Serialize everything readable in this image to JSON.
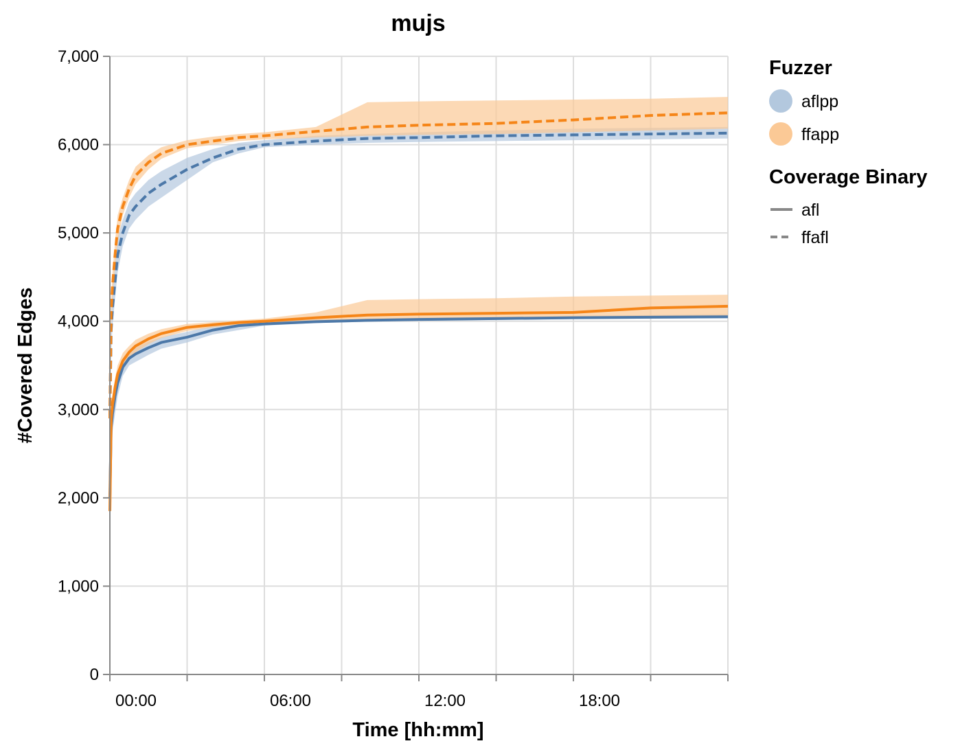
{
  "chart_data": {
    "type": "line",
    "title": "mujs",
    "xlabel": "Time [hh:mm]",
    "ylabel": "#Covered Edges",
    "x_unit": "hours",
    "xlim": [
      0,
      24
    ],
    "ylim": [
      0,
      7000
    ],
    "x_ticks": [
      {
        "value": 0,
        "label": "00:00"
      },
      {
        "value": 6,
        "label": "06:00"
      },
      {
        "value": 12,
        "label": "12:00"
      },
      {
        "value": 18,
        "label": "18:00"
      }
    ],
    "x_gridlines": [
      0,
      3,
      6,
      9,
      12,
      15,
      18,
      21,
      24
    ],
    "y_ticks": [
      {
        "value": 0,
        "label": "0"
      },
      {
        "value": 1000,
        "label": "1,000"
      },
      {
        "value": 2000,
        "label": "2,000"
      },
      {
        "value": 3000,
        "label": "3,000"
      },
      {
        "value": 4000,
        "label": "4,000"
      },
      {
        "value": 5000,
        "label": "5,000"
      },
      {
        "value": 6000,
        "label": "6,000"
      },
      {
        "value": 7000,
        "label": "7,000"
      }
    ],
    "grid": true,
    "legend_position": "right",
    "legends": [
      {
        "title": "Fuzzer",
        "entries": [
          {
            "label": "aflpp",
            "color": "#4c78a8",
            "band_color": "#b3c8de"
          },
          {
            "label": "ffapp",
            "color": "#f58518",
            "band_color": "#fbc996"
          }
        ]
      },
      {
        "title": "Coverage Binary",
        "entries": [
          {
            "label": "afl",
            "dash": "solid"
          },
          {
            "label": "ffafl",
            "dash": "dashed"
          }
        ]
      }
    ],
    "series": [
      {
        "fuzzer": "aflpp",
        "binary": "afl",
        "color": "#4c78a8",
        "dash": "solid",
        "x": [
          0,
          0.05,
          0.1,
          0.2,
          0.3,
          0.5,
          0.75,
          1,
          1.5,
          2,
          3,
          4,
          5,
          6,
          8,
          10,
          12,
          15,
          18,
          21,
          24
        ],
        "y": [
          2000,
          2800,
          2950,
          3150,
          3300,
          3480,
          3580,
          3630,
          3700,
          3760,
          3820,
          3900,
          3950,
          3970,
          3995,
          4010,
          4020,
          4030,
          4040,
          4045,
          4050
        ],
        "lower": [
          1950,
          2600,
          2750,
          2950,
          3150,
          3380,
          3500,
          3540,
          3620,
          3690,
          3760,
          3850,
          3900,
          3950,
          3980,
          3995,
          4005,
          4015,
          4025,
          4030,
          4035
        ],
        "upper": [
          2050,
          2950,
          3100,
          3300,
          3430,
          3580,
          3660,
          3700,
          3770,
          3820,
          3880,
          3950,
          3990,
          4000,
          4020,
          4030,
          4040,
          4050,
          4060,
          4070,
          4080
        ]
      },
      {
        "fuzzer": "ffapp",
        "binary": "afl",
        "color": "#f58518",
        "dash": "solid",
        "x": [
          0,
          0.05,
          0.1,
          0.2,
          0.3,
          0.5,
          0.75,
          1,
          1.5,
          2,
          3,
          4,
          5,
          6,
          8,
          10,
          12,
          15,
          18,
          21,
          24
        ],
        "y": [
          1850,
          2900,
          3050,
          3250,
          3400,
          3550,
          3650,
          3720,
          3800,
          3860,
          3930,
          3960,
          3985,
          4000,
          4040,
          4070,
          4080,
          4090,
          4100,
          4150,
          4170
        ],
        "lower": [
          1800,
          2750,
          2900,
          3100,
          3280,
          3470,
          3580,
          3650,
          3740,
          3810,
          3890,
          3930,
          3960,
          3980,
          4000,
          4010,
          4015,
          4020,
          4025,
          4030,
          4040
        ],
        "upper": [
          1900,
          3050,
          3150,
          3350,
          3500,
          3640,
          3720,
          3790,
          3860,
          3910,
          3970,
          3990,
          4010,
          4030,
          4100,
          4240,
          4250,
          4260,
          4280,
          4290,
          4300
        ]
      },
      {
        "fuzzer": "aflpp",
        "binary": "ffafl",
        "color": "#4c78a8",
        "dash": "dashed",
        "x": [
          0,
          0.05,
          0.1,
          0.2,
          0.3,
          0.5,
          0.75,
          1,
          1.5,
          2,
          3,
          4,
          5,
          6,
          8,
          10,
          12,
          15,
          18,
          21,
          24
        ],
        "y": [
          2900,
          3900,
          4150,
          4450,
          4750,
          5000,
          5200,
          5300,
          5450,
          5550,
          5720,
          5850,
          5950,
          6000,
          6040,
          6070,
          6080,
          6100,
          6110,
          6120,
          6130
        ],
        "lower": [
          2800,
          3600,
          3950,
          4250,
          4550,
          4850,
          5050,
          5150,
          5300,
          5400,
          5600,
          5800,
          5900,
          5970,
          6000,
          6020,
          6030,
          6040,
          6050,
          6060,
          6070
        ],
        "upper": [
          3000,
          4100,
          4350,
          4650,
          4950,
          5150,
          5350,
          5450,
          5600,
          5700,
          5850,
          5950,
          6020,
          6050,
          6100,
          6120,
          6140,
          6160,
          6180,
          6190,
          6200
        ]
      },
      {
        "fuzzer": "ffapp",
        "binary": "ffafl",
        "color": "#f58518",
        "dash": "dashed",
        "x": [
          0,
          0.05,
          0.1,
          0.2,
          0.3,
          0.5,
          0.75,
          1,
          1.5,
          2,
          3,
          4,
          5,
          6,
          8,
          10,
          12,
          15,
          18,
          21,
          24
        ],
        "y": [
          2900,
          4100,
          4400,
          4750,
          5050,
          5300,
          5500,
          5650,
          5800,
          5900,
          6000,
          6040,
          6080,
          6100,
          6150,
          6200,
          6220,
          6240,
          6280,
          6330,
          6360
        ],
        "lower": [
          2800,
          3900,
          4250,
          4600,
          4900,
          5200,
          5400,
          5550,
          5720,
          5840,
          5960,
          6000,
          6040,
          6060,
          6080,
          6100,
          6110,
          6120,
          6140,
          6160,
          6180
        ],
        "upper": [
          3000,
          4300,
          4550,
          4900,
          5200,
          5400,
          5600,
          5750,
          5880,
          5970,
          6050,
          6090,
          6120,
          6140,
          6200,
          6480,
          6490,
          6500,
          6510,
          6520,
          6540
        ]
      }
    ]
  }
}
